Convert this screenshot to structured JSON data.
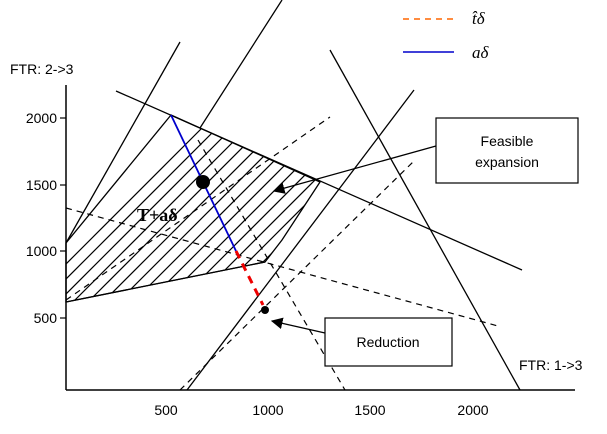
{
  "legend": [
    {
      "label": "t̂δ",
      "color": "#ff6600",
      "style": "dashed"
    },
    {
      "label": "aδ",
      "color": "#0000cc",
      "style": "solid"
    }
  ],
  "axes": {
    "y_label": "FTR: 2->3",
    "x_label": "FTR: 1->3",
    "x_ticks": [
      "500",
      "1000",
      "1500",
      "2000"
    ],
    "y_ticks": [
      "2000",
      "1500",
      "1000",
      "500"
    ]
  },
  "region_label": "T+aδ",
  "callouts": {
    "feasible_line1": "Feasible",
    "feasible_line2": "expansion",
    "reduction": "Reduction"
  }
}
